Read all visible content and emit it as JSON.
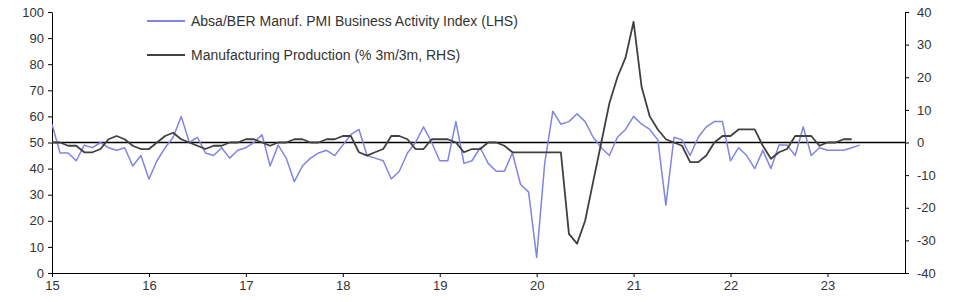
{
  "chart_data": {
    "type": "line",
    "x": [
      2015,
      2015.083,
      2015.167,
      2015.25,
      2015.333,
      2015.417,
      2015.5,
      2015.583,
      2015.667,
      2015.75,
      2015.833,
      2015.917,
      2016,
      2016.083,
      2016.167,
      2016.25,
      2016.333,
      2016.417,
      2016.5,
      2016.583,
      2016.667,
      2016.75,
      2016.833,
      2016.917,
      2017,
      2017.083,
      2017.167,
      2017.25,
      2017.333,
      2017.417,
      2017.5,
      2017.583,
      2017.667,
      2017.75,
      2017.833,
      2017.917,
      2018,
      2018.083,
      2018.167,
      2018.25,
      2018.333,
      2018.417,
      2018.5,
      2018.583,
      2018.667,
      2018.75,
      2018.833,
      2018.917,
      2019,
      2019.083,
      2019.167,
      2019.25,
      2019.333,
      2019.417,
      2019.5,
      2019.583,
      2019.667,
      2019.75,
      2019.833,
      2019.917,
      2020,
      2020.083,
      2020.167,
      2020.25,
      2020.333,
      2020.417,
      2020.5,
      2020.583,
      2020.667,
      2020.75,
      2020.833,
      2020.917,
      2021,
      2021.083,
      2021.167,
      2021.25,
      2021.333,
      2021.417,
      2021.5,
      2021.583,
      2021.667,
      2021.75,
      2021.833,
      2021.917,
      2022,
      2022.083,
      2022.167,
      2022.25,
      2022.333,
      2022.417,
      2022.5,
      2022.583,
      2022.667,
      2022.75,
      2022.833,
      2022.917,
      2023,
      2023.083,
      2023.167,
      2023.25,
      2023.333
    ],
    "series": [
      {
        "name": "Absa/BER Manuf. PMI Business Activity Index (LHS)",
        "color": "#8383e3",
        "axis": "y",
        "values": [
          57,
          46,
          46,
          43,
          49,
          48,
          50,
          48,
          47,
          48,
          41,
          45,
          36,
          43,
          48,
          52,
          60,
          50,
          52,
          46,
          45,
          48,
          44,
          47,
          48,
          50,
          53,
          41,
          49,
          44,
          35,
          41,
          44,
          46,
          47,
          45,
          49,
          53,
          55,
          45,
          44,
          43,
          36,
          39,
          46,
          50,
          56,
          50,
          43,
          43,
          58,
          42,
          43,
          48,
          42,
          39,
          39,
          46,
          34,
          31,
          6,
          42,
          62,
          57,
          58,
          61,
          58,
          52,
          48,
          45,
          52,
          55,
          60,
          57,
          55,
          51,
          26,
          52,
          51,
          45,
          52,
          56,
          58,
          58,
          43,
          48,
          45,
          40,
          47,
          40,
          49,
          49,
          45,
          56,
          45,
          48,
          47,
          47,
          47,
          48,
          49
        ]
      },
      {
        "name": "Manufacturing Production (% 3m/3m, RHS)",
        "color": "#404040",
        "axis": "y2",
        "values": [
          0,
          0,
          -1,
          -1,
          -3,
          -3,
          -2,
          1,
          2,
          1,
          -1,
          -2,
          -2,
          0,
          2,
          3,
          1,
          0,
          -1,
          -2,
          -1,
          -1,
          0,
          0,
          1,
          1,
          0,
          -1,
          0,
          0,
          1,
          1,
          0,
          0,
          1,
          1,
          2,
          2,
          -3,
          -4,
          -3,
          -2,
          2,
          2,
          1,
          -2,
          -2,
          1,
          1,
          1,
          0,
          -3,
          -2,
          -2,
          0,
          0,
          -1,
          -3,
          -3,
          -3,
          -3,
          -3,
          -3,
          -3,
          -28,
          -31,
          -24,
          -12,
          0,
          12,
          20,
          26,
          37,
          17,
          8,
          4,
          1,
          0,
          -1,
          -6,
          -6,
          -4,
          0,
          2,
          2,
          4,
          4,
          4,
          -1,
          -5,
          -3,
          -2,
          2,
          2,
          2,
          -1,
          0,
          0,
          1,
          1,
          null
        ]
      }
    ],
    "xlim": [
      2015,
      2023.8
    ],
    "xticks": [
      {
        "value": 2015,
        "label": "15"
      },
      {
        "value": 2016,
        "label": "16"
      },
      {
        "value": 2017,
        "label": "17"
      },
      {
        "value": 2018,
        "label": "18"
      },
      {
        "value": 2019,
        "label": "19"
      },
      {
        "value": 2020,
        "label": "20"
      },
      {
        "value": 2021,
        "label": "21"
      },
      {
        "value": 2022,
        "label": "22"
      },
      {
        "value": 2023,
        "label": "23"
      }
    ],
    "ylim": [
      0,
      100
    ],
    "yticks": [
      0,
      10,
      20,
      30,
      40,
      50,
      60,
      70,
      80,
      90,
      100
    ],
    "y2lim": [
      -40,
      40
    ],
    "y2ticks": [
      -40,
      -30,
      -20,
      -10,
      0,
      10,
      20,
      30,
      40
    ],
    "grid": false,
    "legend": "upper left"
  }
}
